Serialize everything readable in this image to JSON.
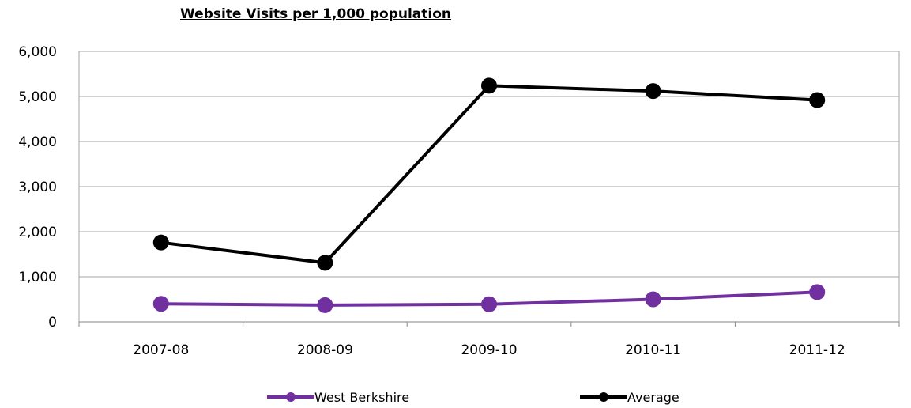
{
  "chart_data": {
    "type": "line",
    "title": "Website Visits per 1,000 population",
    "xlabel": "",
    "ylabel": "",
    "categories": [
      "2007-08",
      "2008-09",
      "2009-10",
      "2010-11",
      "2011-12"
    ],
    "ylim": [
      0,
      6000
    ],
    "yticks": [
      0,
      1000,
      2000,
      3000,
      4000,
      5000,
      6000
    ],
    "ytick_labels": [
      "0",
      "1,000",
      "2,000",
      "3,000",
      "4,000",
      "5,000",
      "6,000"
    ],
    "grid": true,
    "legend_position": "bottom",
    "series": [
      {
        "name": "West Berkshire",
        "color": "#7030a0",
        "values": [
          400,
          370,
          390,
          500,
          660
        ]
      },
      {
        "name": "Average",
        "color": "#000000",
        "values": [
          1760,
          1310,
          5240,
          5120,
          4920
        ]
      }
    ]
  }
}
